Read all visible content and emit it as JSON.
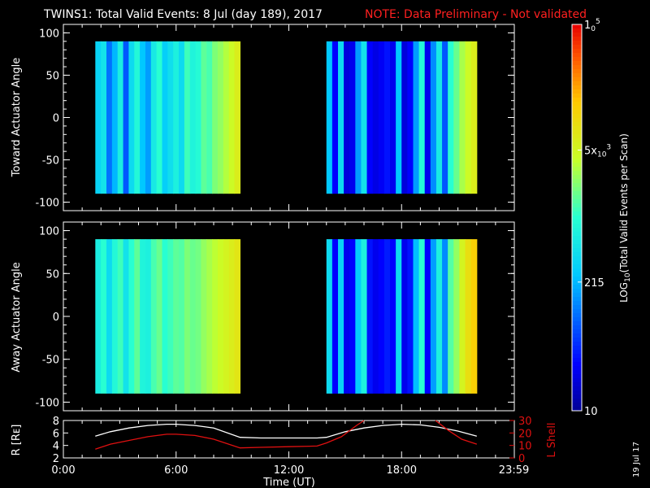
{
  "header": {
    "title": "TWINS1: Total Valid Events:  8 Jul (day 189), 2017",
    "note": "NOTE: Data Preliminary - Not validated"
  },
  "footer": {
    "date_stamp": "19 Jul 17"
  },
  "colors": {
    "note": "#ff2020",
    "lshell": "#e01010",
    "radius": "#ffffff",
    "axis": "#ffffff"
  },
  "chart_data": [
    {
      "type": "heatmap",
      "ylabel": "Toward Actuator Angle",
      "ylim": [
        -110,
        110
      ],
      "yticks": [
        100,
        50,
        0,
        -50,
        -100
      ],
      "xlim": [
        0,
        24
      ],
      "segments": [
        {
          "x_start": 1.7,
          "x_end": 9.4,
          "y_range": [
            -90,
            90
          ],
          "profile": [
            0.38,
            0.42,
            0.25,
            0.33,
            0.45,
            0.22,
            0.4,
            0.48,
            0.35,
            0.3,
            0.44,
            0.5,
            0.37,
            0.41,
            0.46,
            0.4,
            0.52,
            0.47,
            0.49,
            0.55,
            0.53,
            0.58,
            0.6,
            0.63,
            0.66,
            0.7
          ]
        },
        {
          "x_start": 14.0,
          "x_end": 22.0,
          "y_range": [
            -90,
            90
          ],
          "profile": [
            0.35,
            0.12,
            0.4,
            0.08,
            0.1,
            0.3,
            0.42,
            0.12,
            0.09,
            0.11,
            0.14,
            0.1,
            0.35,
            0.08,
            0.12,
            0.3,
            0.48,
            0.1,
            0.28,
            0.44,
            0.22,
            0.5,
            0.56,
            0.62,
            0.66,
            0.7
          ]
        }
      ]
    },
    {
      "type": "heatmap",
      "ylabel": "Away Actuator Angle",
      "ylim": [
        -110,
        110
      ],
      "yticks": [
        100,
        50,
        0,
        -50,
        -100
      ],
      "xlim": [
        0,
        24
      ],
      "segments": [
        {
          "x_start": 1.7,
          "x_end": 9.4,
          "y_range": [
            -90,
            90
          ],
          "profile": [
            0.45,
            0.5,
            0.4,
            0.48,
            0.52,
            0.42,
            0.5,
            0.55,
            0.47,
            0.46,
            0.53,
            0.56,
            0.5,
            0.52,
            0.55,
            0.54,
            0.58,
            0.56,
            0.57,
            0.6,
            0.62,
            0.64,
            0.66,
            0.68,
            0.7,
            0.72
          ]
        },
        {
          "x_start": 14.0,
          "x_end": 22.0,
          "y_range": [
            -90,
            90
          ],
          "profile": [
            0.4,
            0.12,
            0.38,
            0.1,
            0.12,
            0.36,
            0.46,
            0.14,
            0.1,
            0.12,
            0.15,
            0.12,
            0.4,
            0.1,
            0.14,
            0.34,
            0.5,
            0.12,
            0.3,
            0.46,
            0.28,
            0.54,
            0.6,
            0.68,
            0.74,
            0.78
          ]
        }
      ]
    },
    {
      "type": "line",
      "ylabel": "R [Rᴇ]",
      "ylabel_right": "L Shell",
      "ylim": [
        2,
        8
      ],
      "yticks": [
        8,
        6,
        4,
        2
      ],
      "ylim_right": [
        0,
        30
      ],
      "yticks_right": [
        30,
        20,
        10,
        0
      ],
      "xlim": [
        0,
        24
      ],
      "xticks": [
        0,
        6,
        12,
        18,
        23.98
      ],
      "xtick_labels": [
        "0:00",
        "6:00",
        "12:00",
        "18:00",
        "23:59"
      ],
      "xlabel": "Time (UT)",
      "series": [
        {
          "axis": "left",
          "x": [
            1.7,
            2.5,
            3.5,
            4.5,
            5.5,
            6.0,
            7.0,
            8.0,
            9.4,
            10.5,
            12.0,
            13.5,
            14.0,
            15.0,
            16.0,
            17.0,
            18.0,
            19.0,
            20.0,
            21.0,
            22.0
          ],
          "y": [
            5.5,
            6.2,
            6.8,
            7.2,
            7.4,
            7.4,
            7.2,
            6.8,
            5.3,
            5.2,
            5.2,
            5.2,
            5.3,
            6.2,
            6.8,
            7.2,
            7.4,
            7.3,
            6.9,
            6.3,
            5.5
          ]
        },
        {
          "axis": "right",
          "x": [
            1.7,
            2.5,
            3.5,
            4.5,
            5.5,
            6.0,
            7.0,
            8.0,
            9.4,
            10.5,
            12.0,
            13.5,
            14.0,
            14.8,
            15.6,
            16.0
          ],
          "y": [
            7,
            11,
            14,
            17,
            19,
            19,
            18,
            15,
            8,
            8.5,
            9,
            9.5,
            12,
            17,
            26,
            30
          ]
        },
        {
          "axis": "right",
          "x": [
            19.8,
            20.5,
            21.2,
            22.0
          ],
          "y": [
            30,
            22,
            15,
            11
          ]
        }
      ]
    }
  ],
  "colorbar": {
    "type": "log",
    "range": [
      10,
      100000
    ],
    "ticks": [
      {
        "value": 100000,
        "mantissa": "1",
        "exponent": "5",
        "base": "0"
      },
      {
        "value": 5000,
        "mantissa": "5x",
        "exponent": "3",
        "base": "10"
      },
      {
        "value": 215,
        "label": "215"
      },
      {
        "value": 10,
        "label": "10"
      }
    ],
    "label_main": "LOG",
    "label_sub": "10",
    "label_rest": "(Total Valid  Events per Scan)"
  }
}
